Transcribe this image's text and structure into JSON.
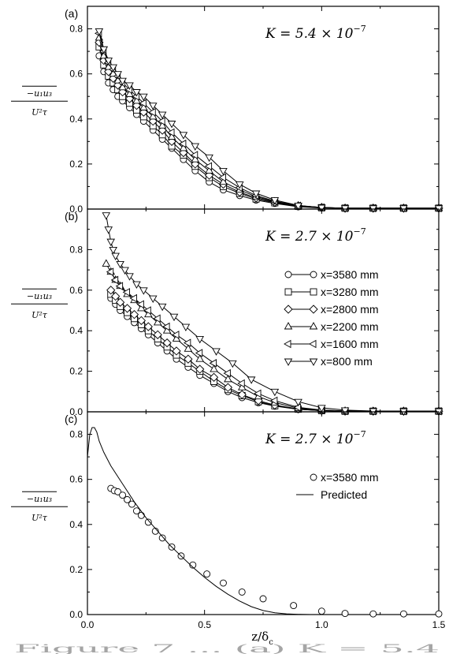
{
  "xlabel_main": "z/δ",
  "xlabel_sub": "c",
  "caption_fragment": "Figure 7 ... (a) K = 5.4",
  "ylabel": {
    "num": "−u₁u₃",
    "den": "U²τ"
  },
  "colors": {
    "ink": "#000000",
    "background": "#ffffff"
  },
  "chart_data": [
    {
      "type": "line",
      "panel_label": "(a)",
      "title": "K = 5.4 × 10",
      "title_exp": "−7",
      "xlim": [
        0,
        1.5
      ],
      "ylim": [
        0,
        0.9
      ],
      "xticks": [
        0.0,
        0.5,
        1.0,
        1.5
      ],
      "yticks": [
        0.0,
        0.2,
        0.4,
        0.6,
        0.8
      ],
      "ytick_labels": [
        "0.0",
        "0.2",
        "0.4",
        "0.6",
        "0.8"
      ],
      "series": [
        {
          "marker": "circle",
          "x": [
            0.05,
            0.07,
            0.09,
            0.11,
            0.13,
            0.15,
            0.18,
            0.21,
            0.24,
            0.28,
            0.32,
            0.36,
            0.41,
            0.46,
            0.52,
            0.58,
            0.65,
            0.72,
            0.8,
            0.9,
            1.0,
            1.1,
            1.22,
            1.35,
            1.5
          ],
          "y": [
            0.68,
            0.61,
            0.56,
            0.53,
            0.5,
            0.48,
            0.45,
            0.42,
            0.39,
            0.35,
            0.31,
            0.27,
            0.22,
            0.17,
            0.12,
            0.085,
            0.06,
            0.04,
            0.025,
            0.01,
            0.005,
            0.003,
            0.003,
            0.003,
            0.003
          ]
        },
        {
          "marker": "square",
          "x": [
            0.05,
            0.07,
            0.09,
            0.11,
            0.13,
            0.15,
            0.18,
            0.21,
            0.24,
            0.28,
            0.32,
            0.36,
            0.41,
            0.46,
            0.52,
            0.58,
            0.65,
            0.72,
            0.8,
            0.9,
            1.0,
            1.1,
            1.22,
            1.35,
            1.5
          ],
          "y": [
            0.72,
            0.64,
            0.59,
            0.56,
            0.53,
            0.5,
            0.47,
            0.44,
            0.41,
            0.37,
            0.33,
            0.28,
            0.24,
            0.19,
            0.14,
            0.1,
            0.07,
            0.045,
            0.028,
            0.012,
            0.006,
            0.004,
            0.004,
            0.004,
            0.004
          ]
        },
        {
          "marker": "diamond",
          "x": [
            0.05,
            0.07,
            0.09,
            0.11,
            0.13,
            0.15,
            0.18,
            0.21,
            0.24,
            0.28,
            0.32,
            0.36,
            0.41,
            0.46,
            0.52,
            0.58,
            0.65,
            0.72,
            0.8,
            0.9,
            1.0,
            1.1,
            1.22,
            1.35,
            1.5
          ],
          "y": [
            0.74,
            0.66,
            0.61,
            0.58,
            0.55,
            0.52,
            0.49,
            0.46,
            0.43,
            0.39,
            0.35,
            0.3,
            0.25,
            0.2,
            0.15,
            0.11,
            0.075,
            0.05,
            0.03,
            0.014,
            0.007,
            0.004,
            0.004,
            0.004,
            0.004
          ]
        },
        {
          "marker": "triangle-up",
          "x": [
            0.05,
            0.07,
            0.09,
            0.11,
            0.13,
            0.15,
            0.18,
            0.21,
            0.24,
            0.28,
            0.32,
            0.36,
            0.41,
            0.46,
            0.52,
            0.58,
            0.65,
            0.72,
            0.8,
            0.9,
            1.0,
            1.1,
            1.22,
            1.35,
            1.5
          ],
          "y": [
            0.76,
            0.68,
            0.63,
            0.6,
            0.57,
            0.54,
            0.51,
            0.48,
            0.45,
            0.41,
            0.37,
            0.32,
            0.27,
            0.22,
            0.17,
            0.12,
            0.085,
            0.055,
            0.033,
            0.015,
            0.007,
            0.004,
            0.004,
            0.004,
            0.004
          ]
        },
        {
          "marker": "triangle-left",
          "x": [
            0.05,
            0.07,
            0.09,
            0.11,
            0.13,
            0.15,
            0.18,
            0.21,
            0.24,
            0.28,
            0.32,
            0.36,
            0.41,
            0.46,
            0.52,
            0.58,
            0.65,
            0.72,
            0.8,
            0.9,
            1.0,
            1.1,
            1.22,
            1.35,
            1.5
          ],
          "y": [
            0.78,
            0.7,
            0.65,
            0.62,
            0.59,
            0.56,
            0.53,
            0.5,
            0.47,
            0.43,
            0.39,
            0.34,
            0.29,
            0.24,
            0.19,
            0.14,
            0.095,
            0.06,
            0.035,
            0.015,
            0.007,
            0.004,
            0.004,
            0.004,
            0.004
          ]
        },
        {
          "marker": "triangle-down",
          "x": [
            0.05,
            0.07,
            0.09,
            0.11,
            0.13,
            0.15,
            0.18,
            0.21,
            0.24,
            0.28,
            0.32,
            0.36,
            0.41,
            0.46,
            0.52,
            0.58,
            0.65,
            0.72,
            0.8,
            0.9,
            1.0,
            1.1,
            1.22,
            1.35,
            1.5
          ],
          "y": [
            0.79,
            0.71,
            0.66,
            0.63,
            0.6,
            0.57,
            0.55,
            0.52,
            0.5,
            0.46,
            0.42,
            0.38,
            0.33,
            0.28,
            0.23,
            0.17,
            0.11,
            0.07,
            0.04,
            0.016,
            0.007,
            0.004,
            0.004,
            0.004,
            0.004
          ]
        }
      ]
    },
    {
      "type": "line",
      "panel_label": "(b)",
      "title": "K = 2.7 × 10",
      "title_exp": "−7",
      "xlim": [
        0,
        1.5
      ],
      "ylim": [
        0,
        1.0
      ],
      "xticks": [
        0.0,
        0.5,
        1.0,
        1.5
      ],
      "yticks": [
        0.0,
        0.2,
        0.4,
        0.6,
        0.8
      ],
      "ytick_labels": [
        "0.0",
        "0.2",
        "0.4",
        "0.6",
        "0.8"
      ],
      "legend": [
        "x=3580 mm",
        "x=3280 mm",
        "x=2800 mm",
        "x=2200 mm",
        "x=1600 mm",
        "x=800 mm"
      ],
      "series": [
        {
          "name": "x=3580 mm",
          "marker": "circle",
          "x": [
            0.1,
            0.12,
            0.14,
            0.17,
            0.2,
            0.23,
            0.26,
            0.3,
            0.34,
            0.38,
            0.43,
            0.48,
            0.54,
            0.6,
            0.66,
            0.73,
            0.8,
            0.9,
            1.0,
            1.1,
            1.22,
            1.35,
            1.5
          ],
          "y": [
            0.56,
            0.53,
            0.5,
            0.47,
            0.44,
            0.41,
            0.38,
            0.34,
            0.3,
            0.26,
            0.22,
            0.18,
            0.14,
            0.1,
            0.07,
            0.045,
            0.028,
            0.012,
            0.006,
            0.003,
            0.003,
            0.003,
            0.003
          ]
        },
        {
          "name": "x=3280 mm",
          "marker": "square",
          "x": [
            0.1,
            0.12,
            0.14,
            0.17,
            0.2,
            0.23,
            0.26,
            0.3,
            0.34,
            0.38,
            0.43,
            0.48,
            0.54,
            0.6,
            0.66,
            0.73,
            0.8,
            0.9,
            1.0,
            1.1,
            1.22,
            1.35,
            1.5
          ],
          "y": [
            0.58,
            0.55,
            0.52,
            0.49,
            0.46,
            0.43,
            0.4,
            0.36,
            0.32,
            0.28,
            0.24,
            0.2,
            0.15,
            0.11,
            0.08,
            0.05,
            0.03,
            0.013,
            0.006,
            0.003,
            0.003,
            0.003,
            0.003
          ]
        },
        {
          "name": "x=2800 mm",
          "marker": "diamond",
          "x": [
            0.1,
            0.12,
            0.14,
            0.17,
            0.2,
            0.23,
            0.26,
            0.3,
            0.34,
            0.38,
            0.43,
            0.48,
            0.54,
            0.6,
            0.66,
            0.73,
            0.8,
            0.9,
            1.0,
            1.1,
            1.22,
            1.35,
            1.5
          ],
          "y": [
            0.6,
            0.57,
            0.54,
            0.51,
            0.48,
            0.45,
            0.42,
            0.38,
            0.34,
            0.3,
            0.26,
            0.21,
            0.17,
            0.12,
            0.085,
            0.055,
            0.033,
            0.014,
            0.006,
            0.003,
            0.003,
            0.003,
            0.003
          ]
        },
        {
          "name": "x=2200 mm",
          "marker": "triangle-up",
          "x": [
            0.08,
            0.1,
            0.12,
            0.14,
            0.17,
            0.2,
            0.23,
            0.26,
            0.3,
            0.34,
            0.38,
            0.43,
            0.48,
            0.54,
            0.6,
            0.66,
            0.73,
            0.8,
            0.9,
            1.0,
            1.1,
            1.22,
            1.35,
            1.5
          ],
          "y": [
            0.73,
            0.69,
            0.65,
            0.62,
            0.58,
            0.55,
            0.51,
            0.48,
            0.44,
            0.4,
            0.36,
            0.31,
            0.26,
            0.21,
            0.16,
            0.12,
            0.075,
            0.045,
            0.018,
            0.008,
            0.004,
            0.003,
            0.003,
            0.003
          ]
        },
        {
          "name": "x=1600 mm",
          "marker": "triangle-left",
          "x": [
            0.1,
            0.12,
            0.14,
            0.17,
            0.2,
            0.23,
            0.26,
            0.3,
            0.34,
            0.38,
            0.43,
            0.48,
            0.54,
            0.6,
            0.66,
            0.73,
            0.8,
            0.9,
            1.0,
            1.1,
            1.22,
            1.35,
            1.5
          ],
          "y": [
            0.69,
            0.65,
            0.62,
            0.59,
            0.56,
            0.53,
            0.5,
            0.46,
            0.42,
            0.38,
            0.34,
            0.29,
            0.24,
            0.19,
            0.14,
            0.09,
            0.055,
            0.022,
            0.009,
            0.004,
            0.003,
            0.003,
            0.003
          ]
        },
        {
          "name": "x=800 mm",
          "marker": "triangle-down",
          "x": [
            0.08,
            0.09,
            0.1,
            0.11,
            0.12,
            0.14,
            0.16,
            0.18,
            0.21,
            0.24,
            0.28,
            0.32,
            0.37,
            0.42,
            0.48,
            0.55,
            0.62,
            0.7,
            0.8,
            0.9,
            1.0,
            1.1,
            1.22,
            1.35,
            1.5
          ],
          "y": [
            0.97,
            0.9,
            0.84,
            0.8,
            0.77,
            0.73,
            0.7,
            0.67,
            0.63,
            0.6,
            0.56,
            0.52,
            0.47,
            0.42,
            0.36,
            0.3,
            0.24,
            0.16,
            0.1,
            0.05,
            0.02,
            0.008,
            0.004,
            0.003,
            0.003
          ]
        }
      ]
    },
    {
      "type": "line",
      "panel_label": "(c)",
      "title": "K = 2.7 × 10",
      "title_exp": "−7",
      "xlim": [
        0,
        1.5
      ],
      "ylim": [
        0,
        0.9
      ],
      "xticks": [
        0.0,
        0.5,
        1.0,
        1.5
      ],
      "xtick_labels": [
        "0.0",
        "0.5",
        "1.0",
        "1.5"
      ],
      "yticks": [
        0.0,
        0.2,
        0.4,
        0.6,
        0.8
      ],
      "ytick_labels": [
        "0.0",
        "0.2",
        "0.4",
        "0.6",
        "0.8"
      ],
      "legend": [
        "x=3580 mm",
        "Predicted"
      ],
      "series": [
        {
          "name": "x=3580 mm",
          "marker": "circle",
          "x": [
            0.1,
            0.115,
            0.13,
            0.15,
            0.17,
            0.19,
            0.21,
            0.23,
            0.26,
            0.29,
            0.32,
            0.36,
            0.4,
            0.45,
            0.51,
            0.58,
            0.66,
            0.75,
            0.88,
            1.0,
            1.1,
            1.22,
            1.35,
            1.5
          ],
          "y": [
            0.56,
            0.55,
            0.545,
            0.53,
            0.51,
            0.49,
            0.46,
            0.44,
            0.41,
            0.37,
            0.34,
            0.3,
            0.26,
            0.22,
            0.18,
            0.14,
            0.1,
            0.07,
            0.04,
            0.015,
            0.005,
            0.003,
            0.003,
            0.003
          ]
        },
        {
          "name": "Predicted",
          "marker": "none",
          "x": [
            0.0,
            0.01,
            0.02,
            0.03,
            0.04,
            0.05,
            0.07,
            0.1,
            0.15,
            0.2,
            0.25,
            0.3,
            0.35,
            0.4,
            0.45,
            0.5,
            0.55,
            0.6,
            0.65,
            0.7,
            0.75,
            0.8,
            0.85,
            0.9,
            0.95,
            1.0,
            1.05
          ],
          "y": [
            0.7,
            0.8,
            0.83,
            0.83,
            0.81,
            0.77,
            0.72,
            0.66,
            0.58,
            0.5,
            0.43,
            0.37,
            0.31,
            0.26,
            0.21,
            0.165,
            0.125,
            0.09,
            0.06,
            0.035,
            0.018,
            0.008,
            0.003,
            0.001,
            0.0,
            0.0,
            0.0
          ]
        }
      ]
    }
  ]
}
